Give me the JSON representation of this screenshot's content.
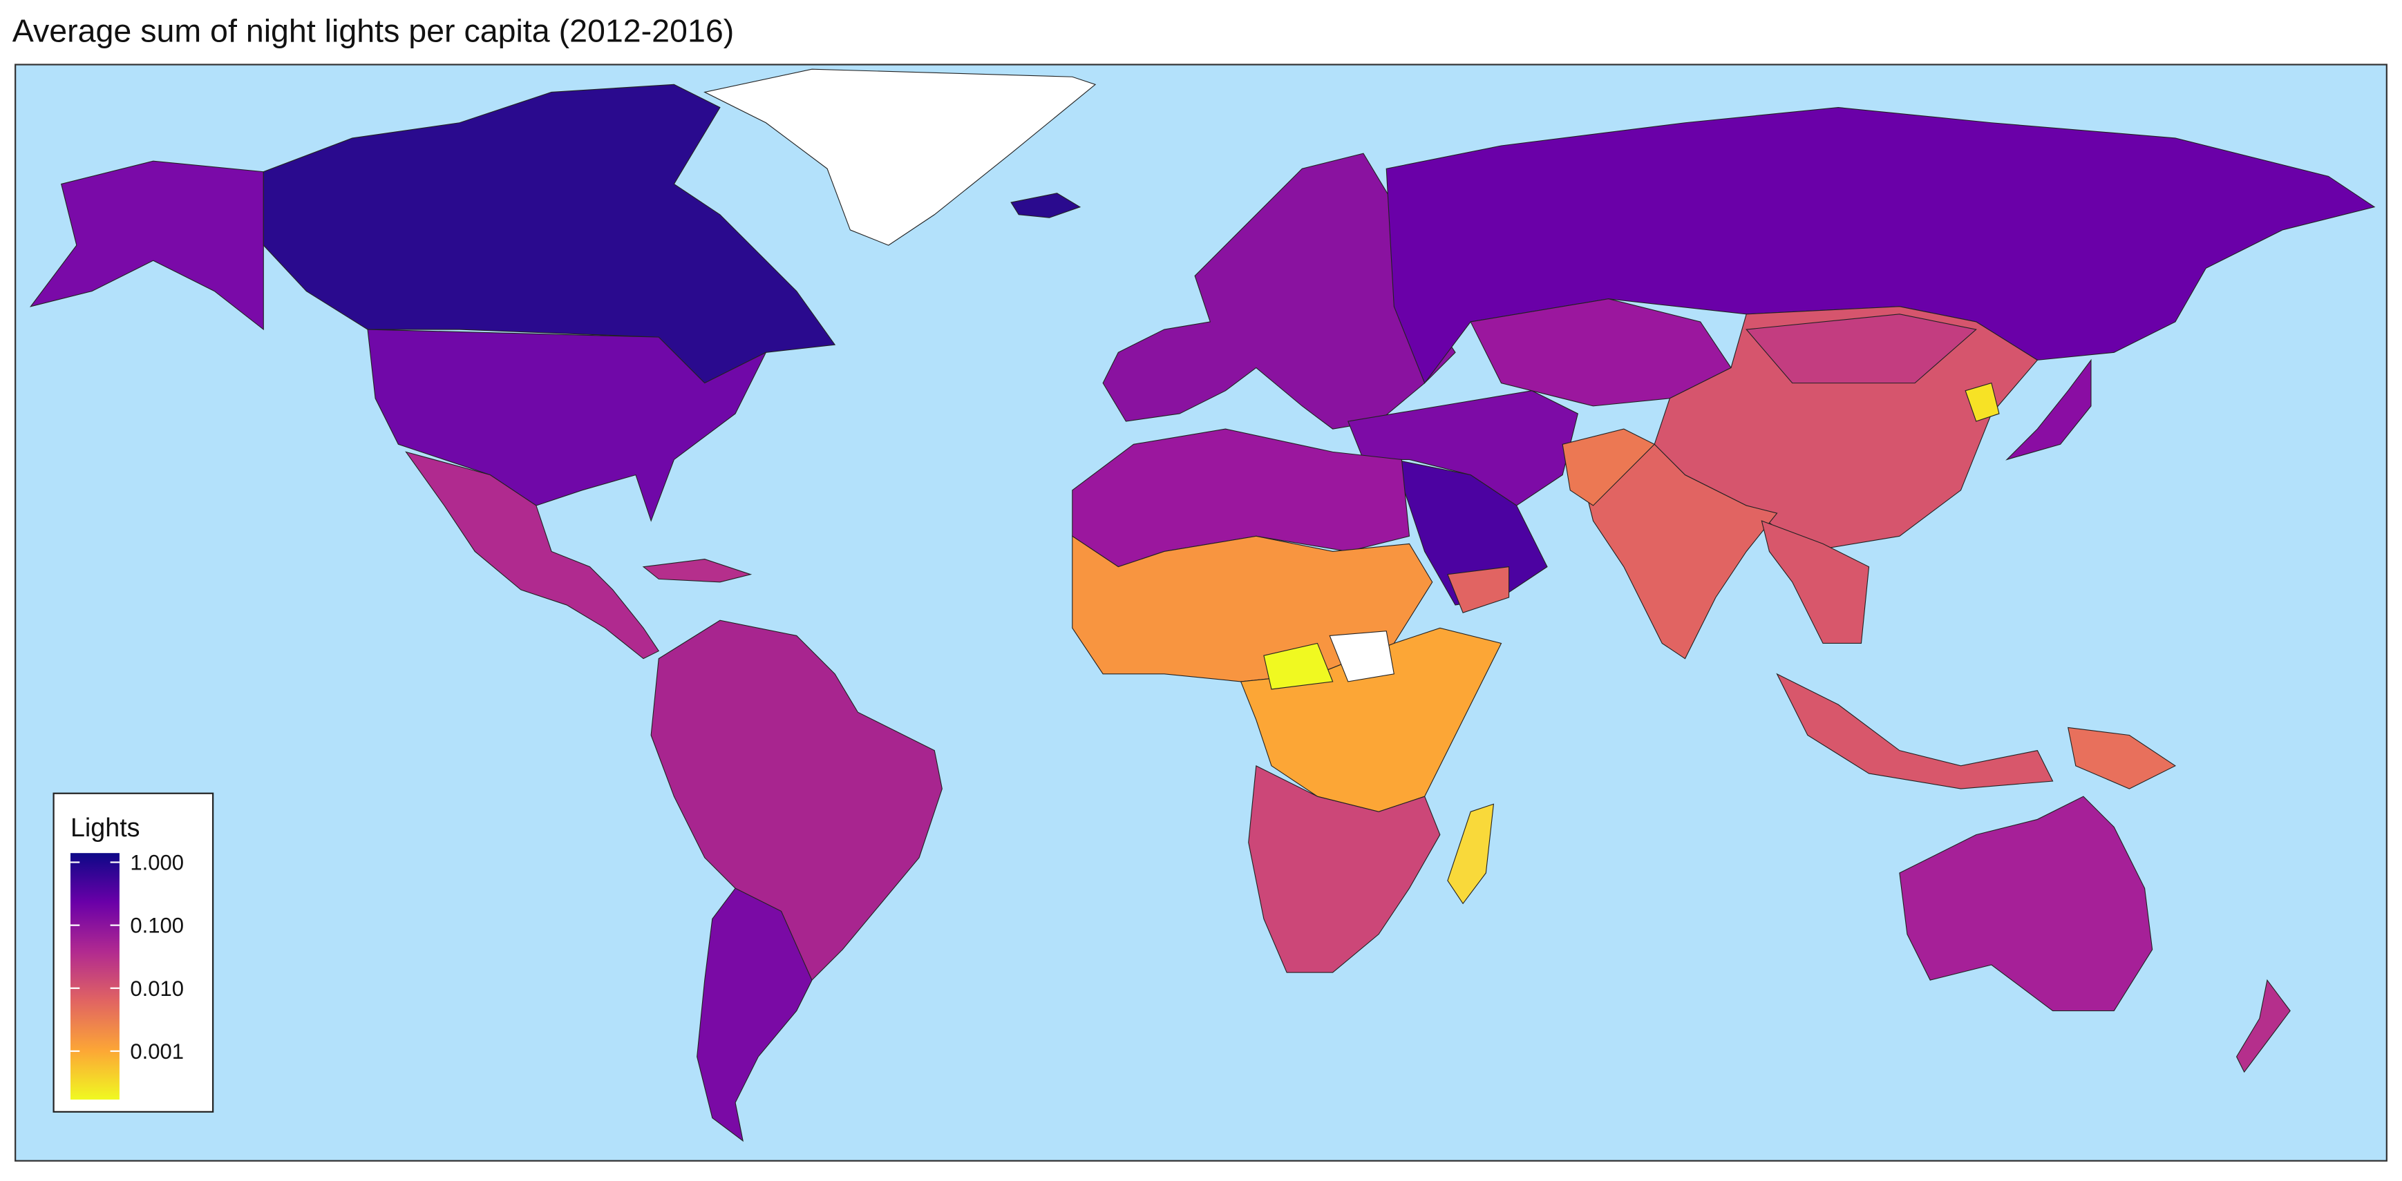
{
  "chart_data": {
    "type": "choropleth",
    "title": "Average sum of night lights per capita (2012-2016)",
    "legend_title": "Lights",
    "log_scale": true,
    "color_scale": "plasma",
    "clim": [
      0.00017,
      1.4
    ],
    "cticks": [
      {
        "value": 1,
        "label": "1.000"
      },
      {
        "value": 0.1,
        "label": "0.100"
      },
      {
        "value": 0.01,
        "label": "0.010"
      },
      {
        "value": 0.001,
        "label": "0.001"
      }
    ],
    "legend_position": "bottom-left"
  }
}
